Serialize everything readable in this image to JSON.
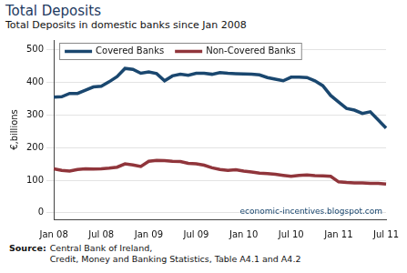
{
  "chart_data": {
    "type": "line",
    "title": "Total Deposits",
    "subtitle": "Total Deposits in domestic banks since Jan 2008",
    "y_label": "€,billions",
    "categories": [
      "Jan 08",
      null,
      null,
      null,
      null,
      null,
      "Jul 08",
      null,
      null,
      null,
      null,
      null,
      "Jan 09",
      null,
      null,
      null,
      null,
      null,
      "Jul 09",
      null,
      null,
      null,
      null,
      null,
      "Jan 10",
      null,
      null,
      null,
      null,
      null,
      "Jul 10",
      null,
      null,
      null,
      null,
      null,
      "Jan 11",
      null,
      null,
      null,
      null,
      null,
      "Jul 11"
    ],
    "series": [
      {
        "name": "Covered Banks",
        "color": "#1a476f",
        "values": [
          355,
          356,
          366,
          366,
          376,
          386,
          388,
          402,
          418,
          443,
          440,
          428,
          432,
          427,
          405,
          420,
          425,
          422,
          428,
          428,
          425,
          430,
          428,
          427,
          426,
          425,
          423,
          415,
          410,
          405,
          416,
          416,
          415,
          405,
          390,
          360,
          340,
          320,
          315,
          305,
          310,
          285,
          260
        ]
      },
      {
        "name": "Non-Covered Banks",
        "color": "#90353b",
        "values": [
          135,
          130,
          128,
          133,
          135,
          134,
          135,
          137,
          140,
          150,
          147,
          142,
          158,
          161,
          160,
          158,
          157,
          152,
          150,
          146,
          138,
          133,
          130,
          132,
          128,
          125,
          122,
          120,
          118,
          115,
          112,
          115,
          116,
          114,
          113,
          112,
          95,
          93,
          92,
          92,
          90,
          90,
          88
        ]
      }
    ],
    "ylim": [
      -20,
      530
    ],
    "yticks": [
      0,
      100,
      200,
      300,
      400,
      500
    ],
    "grid": true,
    "legend": "top-left",
    "annotations": [
      "economic-incentives.blogspot.com"
    ],
    "source": {
      "label": "Source:",
      "lines": [
        "Central Bank of Ireland,",
        "Credit, Money and Banking Statistics, Table A4.1 and A4.2"
      ]
    }
  }
}
